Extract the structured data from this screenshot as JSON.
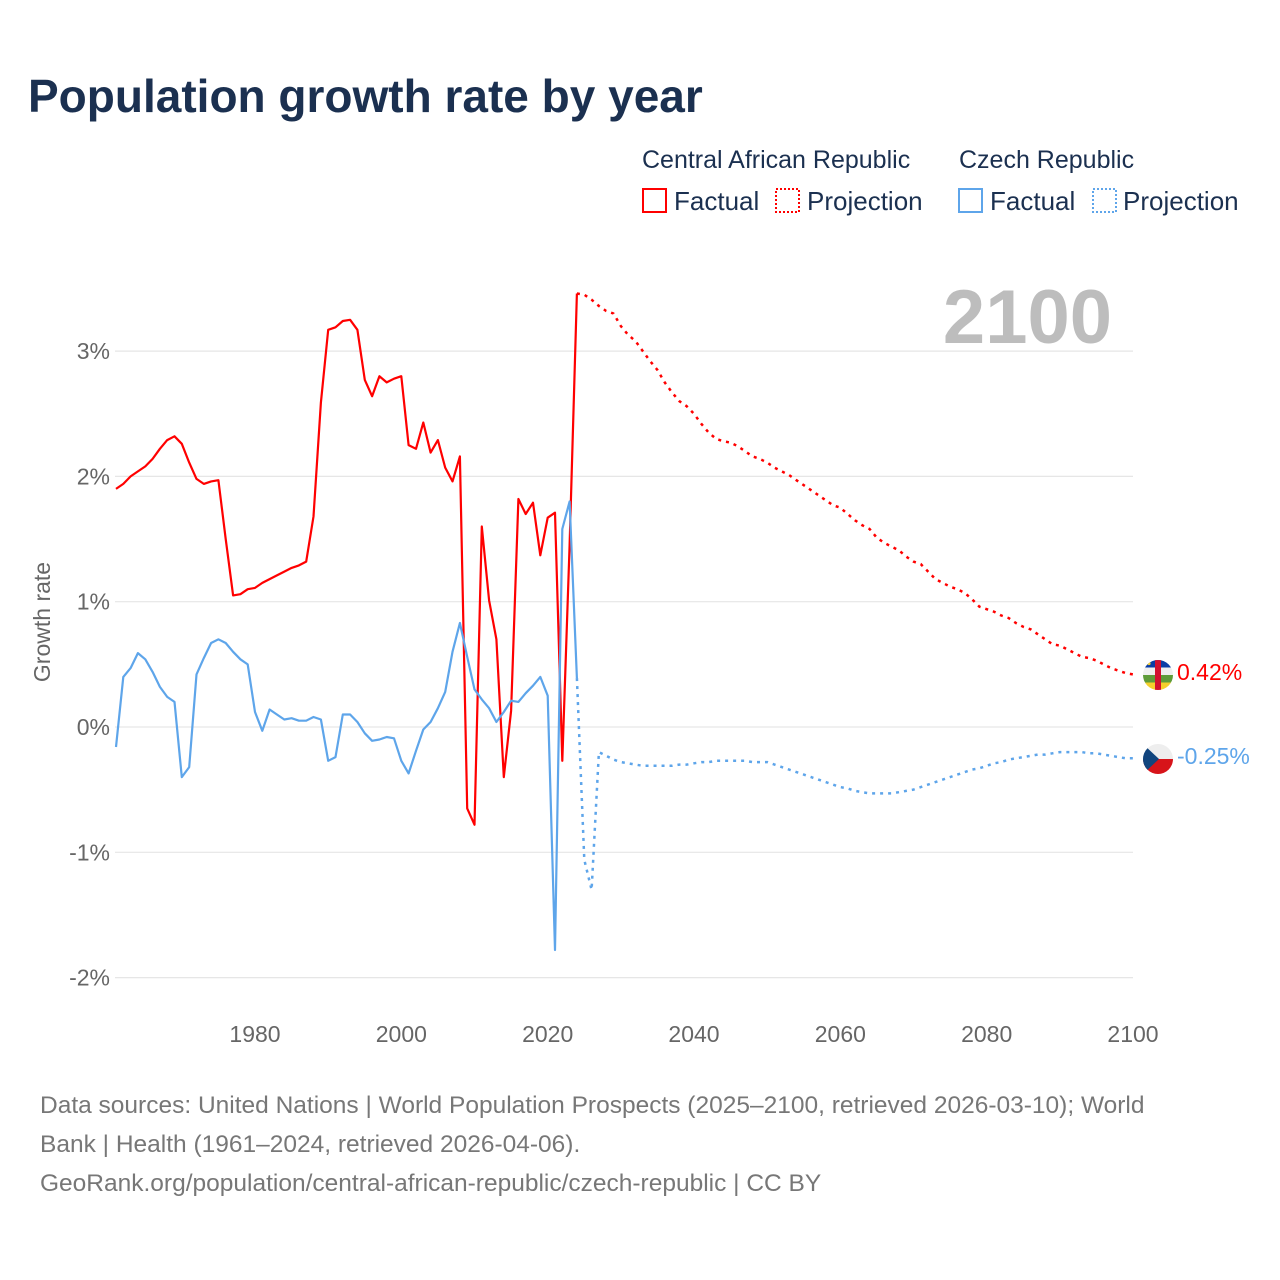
{
  "chart_data": {
    "type": "line",
    "title": "Population growth rate by year",
    "ylabel": "Growth rate",
    "xlabel": "",
    "xlim": [
      1961,
      2100
    ],
    "ylim": [
      -2.1,
      3.6
    ],
    "x_ticks": [
      1980,
      2000,
      2020,
      2040,
      2060,
      2080,
      2100
    ],
    "x_tick_labels": [
      "1980",
      "2000",
      "2020",
      "2040",
      "2060",
      "2080",
      "2100"
    ],
    "y_ticks": [
      3,
      2,
      1,
      0,
      -1,
      -2
    ],
    "y_tick_labels": [
      "3%",
      "2%",
      "1%",
      "0%",
      "-1%",
      "-2%"
    ],
    "grid": true,
    "current_year_label": "2100",
    "legend": {
      "placement": "top-right",
      "groups": [
        {
          "country": "Central African Republic",
          "factual": "Factual",
          "projection": "Projection",
          "color": "#ff0000"
        },
        {
          "country": "Czech Republic",
          "factual": "Factual",
          "projection": "Projection",
          "color": "#5ea5ea"
        }
      ]
    },
    "series": [
      {
        "name": "Central African Republic",
        "color": "#ff0000",
        "end_label": "0.42%",
        "flag": "central-african-republic-flag",
        "factual": {
          "start_year": 1961,
          "values": [
            1.9,
            1.94,
            2.0,
            2.04,
            2.08,
            2.14,
            2.22,
            2.29,
            2.32,
            2.26,
            2.11,
            1.98,
            1.94,
            1.96,
            1.97,
            1.5,
            1.05,
            1.06,
            1.1,
            1.11,
            1.15,
            1.18,
            1.21,
            1.24,
            1.27,
            1.29,
            1.32,
            1.68,
            2.59,
            3.17,
            3.19,
            3.24,
            3.25,
            3.17,
            2.77,
            2.64,
            2.8,
            2.75,
            2.78,
            2.8,
            2.25,
            2.22,
            2.43,
            2.19,
            2.29,
            2.07,
            1.96,
            2.16,
            -0.65,
            -0.78,
            1.6,
            1.01,
            0.7,
            -0.4,
            0.13,
            1.82,
            1.7,
            1.79,
            1.37,
            1.67,
            1.71,
            -0.27,
            1.45,
            3.46
          ]
        },
        "projection": {
          "start_year": 2024,
          "values": [
            3.46,
            3.45,
            3.41,
            3.36,
            3.32,
            3.3,
            3.2,
            3.13,
            3.08,
            3.0,
            2.92,
            2.85,
            2.75,
            2.67,
            2.6,
            2.56,
            2.5,
            2.42,
            2.35,
            2.3,
            2.28,
            2.27,
            2.24,
            2.2,
            2.16,
            2.14,
            2.11,
            2.07,
            2.04,
            2.01,
            1.97,
            1.93,
            1.89,
            1.85,
            1.81,
            1.77,
            1.75,
            1.7,
            1.65,
            1.61,
            1.58,
            1.51,
            1.47,
            1.44,
            1.41,
            1.36,
            1.32,
            1.3,
            1.24,
            1.18,
            1.15,
            1.12,
            1.1,
            1.07,
            1.02,
            0.96,
            0.94,
            0.92,
            0.89,
            0.87,
            0.83,
            0.8,
            0.78,
            0.74,
            0.7,
            0.66,
            0.65,
            0.62,
            0.59,
            0.56,
            0.55,
            0.53,
            0.5,
            0.47,
            0.45,
            0.43,
            0.42
          ]
        }
      },
      {
        "name": "Czech Republic",
        "color": "#5ea5ea",
        "end_label": "-0.25%",
        "flag": "czech-republic-flag",
        "factual": {
          "start_year": 1961,
          "values": [
            -0.16,
            0.4,
            0.47,
            0.59,
            0.54,
            0.44,
            0.32,
            0.24,
            0.2,
            -0.4,
            -0.32,
            0.42,
            0.55,
            0.67,
            0.7,
            0.67,
            0.6,
            0.54,
            0.5,
            0.12,
            -0.03,
            0.14,
            0.1,
            0.06,
            0.07,
            0.05,
            0.05,
            0.08,
            0.06,
            -0.27,
            -0.24,
            0.1,
            0.1,
            0.04,
            -0.05,
            -0.11,
            -0.1,
            -0.08,
            -0.09,
            -0.27,
            -0.37,
            -0.19,
            -0.02,
            0.04,
            0.15,
            0.28,
            0.6,
            0.83,
            0.56,
            0.3,
            0.22,
            0.15,
            0.04,
            0.12,
            0.21,
            0.2,
            0.27,
            0.33,
            0.4,
            0.25,
            -1.78,
            1.58,
            1.8,
            0.39
          ]
        },
        "projection": {
          "start_year": 2024,
          "values": [
            0.39,
            -1.06,
            -1.3,
            -0.2,
            -0.23,
            -0.26,
            -0.28,
            -0.29,
            -0.3,
            -0.31,
            -0.31,
            -0.31,
            -0.31,
            -0.31,
            -0.3,
            -0.3,
            -0.29,
            -0.28,
            -0.28,
            -0.27,
            -0.27,
            -0.27,
            -0.27,
            -0.27,
            -0.28,
            -0.28,
            -0.28,
            -0.3,
            -0.32,
            -0.34,
            -0.36,
            -0.38,
            -0.4,
            -0.42,
            -0.44,
            -0.46,
            -0.48,
            -0.49,
            -0.51,
            -0.52,
            -0.53,
            -0.53,
            -0.53,
            -0.53,
            -0.52,
            -0.51,
            -0.5,
            -0.48,
            -0.46,
            -0.44,
            -0.42,
            -0.4,
            -0.38,
            -0.36,
            -0.34,
            -0.33,
            -0.31,
            -0.29,
            -0.28,
            -0.26,
            -0.25,
            -0.24,
            -0.23,
            -0.22,
            -0.22,
            -0.21,
            -0.2,
            -0.2,
            -0.2,
            -0.2,
            -0.21,
            -0.21,
            -0.22,
            -0.23,
            -0.24,
            -0.25,
            -0.25
          ]
        }
      }
    ],
    "footer": {
      "line1": "Data sources: United Nations | World Population Prospects (2025–2100, retrieved 2026-03-10); World",
      "line2": "Bank | Health (1961–2024, retrieved 2026-04-06).",
      "line3": "GeoRank.org/population/central-african-republic/czech-republic | CC BY"
    }
  }
}
